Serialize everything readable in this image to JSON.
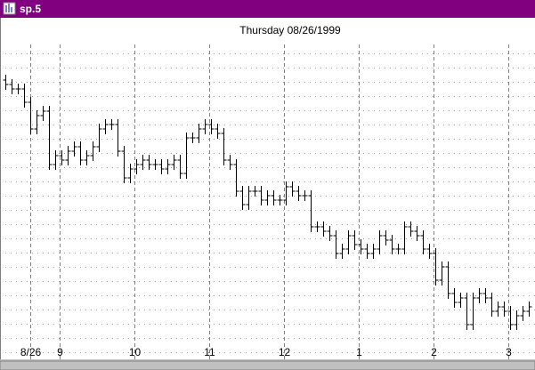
{
  "window_title": "sp.5",
  "chart_data": {
    "type": "ohlc",
    "title": "Thursday 08/26/1999",
    "color": "#000000",
    "open": [
      295,
      290,
      285,
      285,
      270,
      240,
      255,
      260,
      200,
      210,
      205,
      215,
      220,
      205,
      210,
      220,
      240,
      245,
      245,
      215,
      185,
      195,
      200,
      205,
      200,
      200,
      195,
      200,
      205,
      190,
      230,
      230,
      240,
      245,
      240,
      235,
      205,
      200,
      170,
      155,
      170,
      170,
      160,
      165,
      160,
      160,
      175,
      170,
      165,
      165,
      130,
      130,
      125,
      120,
      100,
      105,
      120,
      110,
      105,
      100,
      105,
      120,
      115,
      105,
      105,
      130,
      125,
      120,
      105,
      100,
      70,
      85,
      55,
      45,
      50,
      20,
      50,
      55,
      50,
      35,
      40,
      35,
      20,
      30,
      35
    ],
    "high": [
      301,
      296,
      291,
      291,
      276,
      261,
      266,
      266,
      216,
      216,
      221,
      226,
      226,
      216,
      226,
      246,
      251,
      251,
      251,
      221,
      201,
      206,
      211,
      211,
      206,
      206,
      206,
      211,
      211,
      236,
      236,
      246,
      251,
      251,
      246,
      241,
      211,
      206,
      176,
      176,
      176,
      176,
      171,
      171,
      166,
      181,
      181,
      176,
      171,
      171,
      136,
      136,
      131,
      126,
      111,
      126,
      126,
      116,
      111,
      111,
      126,
      126,
      121,
      111,
      136,
      136,
      131,
      126,
      111,
      106,
      91,
      91,
      61,
      56,
      56,
      56,
      61,
      61,
      56,
      46,
      46,
      41,
      36,
      41,
      46
    ],
    "low": [
      284,
      279,
      279,
      264,
      234,
      234,
      249,
      194,
      194,
      199,
      199,
      209,
      199,
      199,
      204,
      214,
      234,
      239,
      209,
      179,
      179,
      189,
      194,
      194,
      194,
      189,
      189,
      194,
      184,
      184,
      224,
      224,
      234,
      234,
      229,
      199,
      194,
      164,
      149,
      149,
      164,
      154,
      154,
      154,
      154,
      154,
      164,
      159,
      159,
      124,
      124,
      119,
      114,
      94,
      94,
      99,
      104,
      99,
      94,
      94,
      99,
      109,
      99,
      99,
      99,
      119,
      114,
      99,
      94,
      64,
      64,
      49,
      39,
      39,
      14,
      14,
      44,
      44,
      29,
      29,
      29,
      14,
      14,
      24,
      29
    ],
    "close": [
      290,
      285,
      285,
      270,
      240,
      255,
      260,
      200,
      210,
      205,
      215,
      220,
      205,
      210,
      220,
      240,
      245,
      245,
      215,
      185,
      195,
      200,
      205,
      200,
      200,
      195,
      200,
      205,
      190,
      230,
      230,
      240,
      245,
      240,
      235,
      205,
      200,
      170,
      155,
      170,
      170,
      160,
      165,
      160,
      160,
      175,
      170,
      165,
      165,
      130,
      130,
      125,
      120,
      100,
      105,
      120,
      110,
      105,
      100,
      105,
      120,
      115,
      105,
      105,
      130,
      125,
      120,
      105,
      100,
      70,
      85,
      55,
      45,
      50,
      20,
      50,
      55,
      50,
      35,
      40,
      35,
      20,
      30,
      35,
      40
    ],
    "ylim": [
      0,
      340
    ],
    "xlim": [
      -0.86,
      85
    ],
    "xticks": [
      {
        "value": 4,
        "label": "8/26"
      },
      {
        "value": 8.71,
        "label": "9"
      },
      {
        "value": 20.71,
        "label": "10"
      },
      {
        "value": 32.71,
        "label": "11"
      },
      {
        "value": 44.71,
        "label": "12"
      },
      {
        "value": 56.71,
        "label": "1"
      },
      {
        "value": 68.71,
        "label": "2"
      },
      {
        "value": 80.71,
        "label": "3"
      }
    ],
    "grid": true
  }
}
